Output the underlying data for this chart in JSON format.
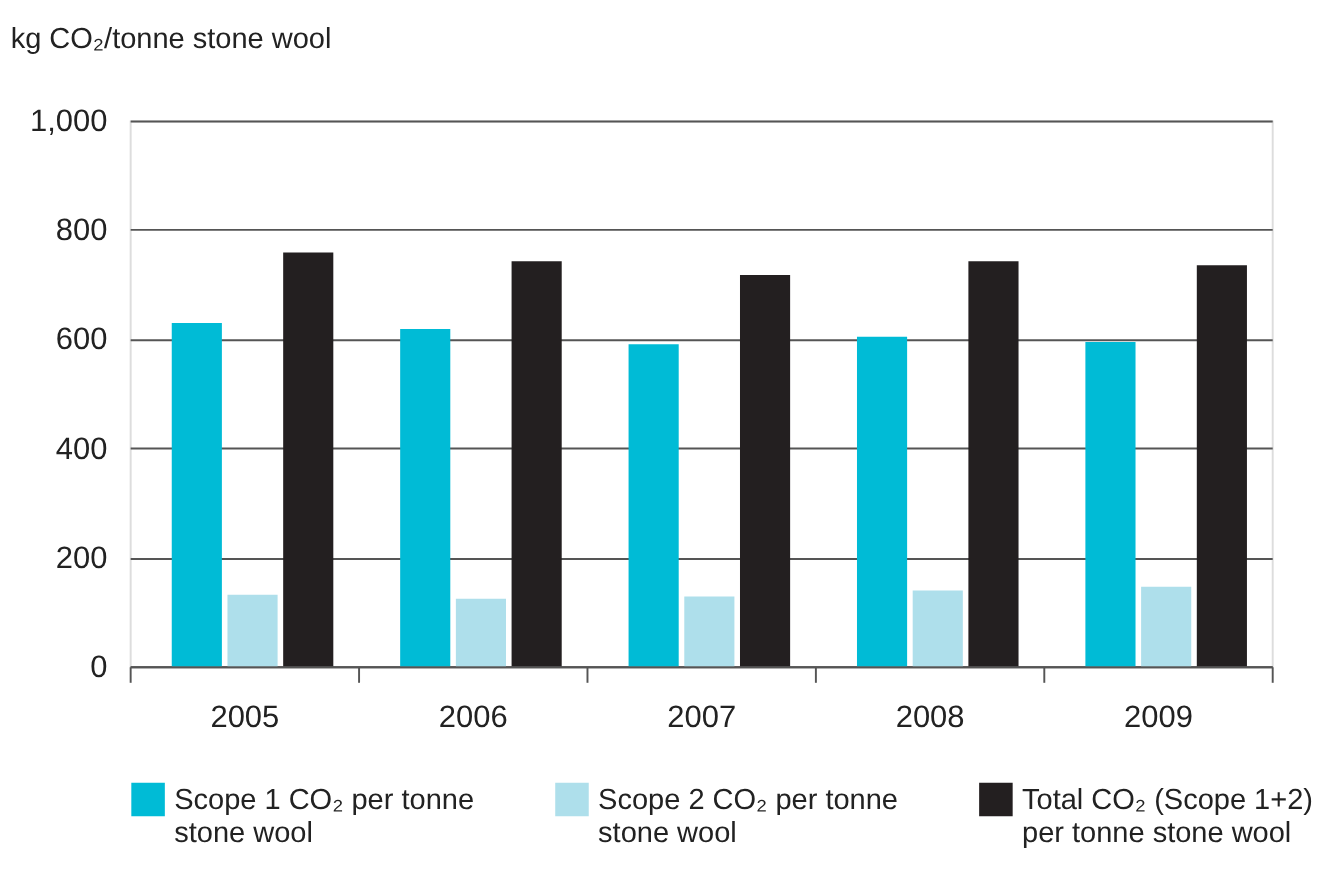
{
  "chart_data": {
    "type": "bar",
    "ylabel": "kg CO₂/tonne stone wool",
    "categories": [
      "2005",
      "2006",
      "2007",
      "2008",
      "2009"
    ],
    "series": [
      {
        "name": "Scope 1 CO₂ per tonne stone wool",
        "color": "#00bbd6",
        "values": [
          629,
          618,
          590,
          604,
          594
        ]
      },
      {
        "name": "Scope 2 CO₂ per tonne stone wool",
        "color": "#aedfeb",
        "values": [
          131,
          124,
          128,
          139,
          146
        ]
      },
      {
        "name": "Total CO₂ (Scope 1+2) per tonne stone wool",
        "color": "#231f20",
        "values": [
          758,
          742,
          717,
          742,
          735
        ]
      }
    ],
    "ylim": [
      0,
      1000
    ],
    "yticks": [
      0,
      200,
      400,
      600,
      800,
      {
        "value": 1000,
        "label": "1,000"
      }
    ],
    "grid": "y",
    "legend": "bottom"
  }
}
